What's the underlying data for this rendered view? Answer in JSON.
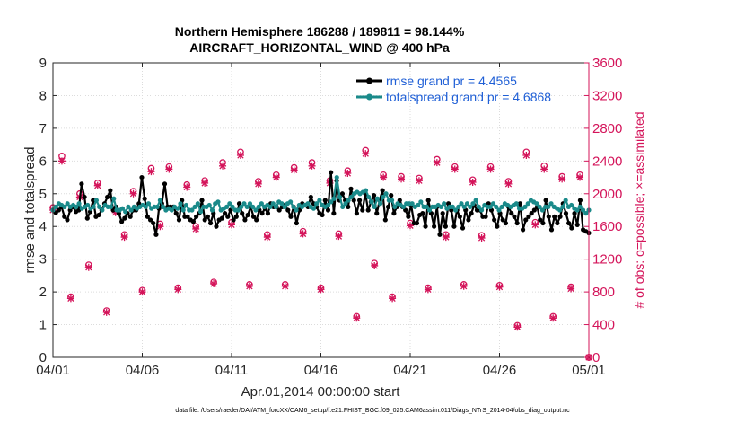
{
  "chart_data": {
    "type": "line",
    "title_line1": "Northern Hemisphere 186288 / 189811 = 98.144%",
    "title_line2": "AIRCRAFT_HORIZONTAL_WIND @ 400 hPa",
    "xlabel": "Apr.01,2014 00:00:00 start",
    "ylabel_left": "rmse and totalspread",
    "ylabel_right": "# of obs: o=possible; ×=assimilated",
    "footnote": "data file: /Users/raeder/DAI/ATM_forcXX/CAM6_setup/f.e21.FHIST_BGC.f09_025.CAM6assim.011/Diags_NTrS_2014-04/obs_diag_output.nc",
    "x_range_days": [
      0,
      30
    ],
    "x_ticks": [
      0,
      5,
      10,
      15,
      20,
      25,
      30
    ],
    "x_tick_labels": [
      "04/01",
      "04/06",
      "04/11",
      "04/16",
      "04/21",
      "04/26",
      "05/01"
    ],
    "ylim_left": [
      0,
      9
    ],
    "y_ticks_left": [
      "0",
      "1",
      "2",
      "3",
      "4",
      "5",
      "6",
      "7",
      "8",
      "9"
    ],
    "ylim_right": [
      0,
      3600
    ],
    "y_ticks_right": [
      "0",
      "400",
      "800",
      "1200",
      "1600",
      "2000",
      "2400",
      "2800",
      "3200",
      "3600"
    ],
    "colors": {
      "rmse": "#000000",
      "spread": "#1a8a8a",
      "obs": "#d4145a",
      "legend_text": "#1f5fd6"
    },
    "series": [
      {
        "name": "rmse grand pr = 4.4565",
        "color": "#000000",
        "values": [
          4.5,
          4.42,
          4.5,
          4.6,
          4.3,
          4.2,
          4.5,
          4.6,
          4.45,
          4.5,
          5.3,
          4.9,
          4.25,
          4.45,
          4.8,
          4.3,
          4.35,
          4.5,
          4.7,
          4.9,
          5.1,
          4.5,
          4.6,
          4.4,
          4.15,
          4.25,
          4.4,
          4.3,
          4.5,
          4.5,
          4.7,
          5.5,
          4.85,
          4.3,
          4.2,
          4.1,
          3.75,
          4.55,
          4.7,
          5.3,
          4.6,
          4.6,
          4.6,
          4.4,
          4.2,
          4.8,
          4.3,
          4.3,
          4.2,
          4.15,
          4.3,
          4.4,
          4.8,
          4.2,
          4.3,
          4.1,
          4.4,
          4.0,
          4.2,
          4.25,
          4.4,
          4.3,
          4.5,
          4.2,
          4.3,
          4.7,
          4.4,
          4.2,
          4.35,
          4.6,
          4.3,
          4.2,
          4.5,
          4.4,
          4.55,
          4.4,
          4.7,
          4.6,
          4.6,
          4.5,
          4.6,
          4.65,
          4.5,
          4.3,
          4.6,
          4.1,
          4.5,
          4.7,
          4.65,
          4.6,
          4.9,
          4.7,
          4.6,
          4.4,
          4.35,
          4.8,
          4.5,
          5.65,
          4.4,
          5.4,
          4.8,
          5.0,
          4.8,
          4.6,
          5.15,
          4.8,
          4.4,
          4.8,
          4.5,
          5.0,
          4.5,
          4.75,
          4.95,
          4.4,
          4.8,
          5.1,
          4.2,
          4.6,
          4.95,
          4.4,
          4.6,
          4.8,
          4.6,
          4.5,
          4.3,
          4.65,
          4.1,
          4.1,
          4.35,
          4.4,
          4.0,
          4.8,
          4.4,
          4.0,
          4.6,
          3.75,
          4.4,
          4.0,
          4.7,
          4.5,
          4.0,
          4.5,
          4.3,
          3.95,
          4.5,
          4.2,
          4.4,
          4.65,
          4.5,
          4.5,
          4.3,
          4.3,
          4.7,
          4.5,
          4.2,
          4.0,
          4.4,
          4.2,
          4.1,
          4.6,
          4.4,
          4.3,
          4.1,
          4.7,
          3.9,
          4.2,
          4.3,
          4.4,
          4.5,
          4.6,
          4.2,
          4.1,
          4.8,
          4.3,
          3.9,
          4.3,
          4.1,
          4.3,
          4.7,
          4.4,
          4.1,
          3.95,
          4.4,
          4.05,
          4.8,
          3.9,
          3.85,
          3.8
        ]
      },
      {
        "name": "totalspread grand pr = 4.6868",
        "color": "#1a8a8a",
        "values": [
          4.5,
          4.6,
          4.7,
          4.65,
          4.6,
          4.7,
          4.6,
          4.65,
          4.6,
          4.7,
          4.55,
          4.6,
          4.65,
          4.55,
          4.6,
          4.8,
          4.6,
          4.5,
          4.65,
          4.6,
          4.6,
          4.85,
          4.5,
          4.5,
          4.55,
          4.45,
          4.6,
          4.5,
          4.6,
          4.55,
          4.6,
          4.65,
          4.6,
          4.7,
          4.55,
          4.6,
          4.6,
          4.8,
          4.6,
          4.5,
          4.55,
          4.5,
          4.6,
          4.55,
          4.7,
          4.5,
          4.65,
          4.5,
          4.5,
          4.6,
          4.7,
          4.45,
          4.6,
          4.6,
          4.65,
          4.5,
          4.7,
          4.75,
          4.5,
          4.55,
          4.6,
          4.7,
          4.6,
          4.5,
          4.5,
          4.6,
          4.7,
          4.6,
          4.7,
          4.6,
          4.5,
          4.6,
          4.7,
          4.6,
          4.65,
          4.6,
          4.7,
          4.6,
          4.75,
          4.7,
          4.6,
          4.7,
          4.75,
          4.6,
          4.5,
          4.65,
          4.6,
          4.65,
          4.7,
          4.6,
          4.55,
          4.7,
          4.8,
          4.65,
          4.6,
          4.65,
          4.75,
          4.85,
          5.5,
          4.9,
          4.6,
          4.7,
          4.8,
          4.9,
          5.0,
          5.05,
          5.0,
          5.05,
          5.1,
          4.9,
          4.75,
          4.6,
          4.85,
          4.7,
          4.9,
          5.0,
          4.8,
          4.8,
          4.6,
          4.7,
          4.65,
          4.6,
          4.7,
          4.7,
          4.7,
          4.6,
          4.65,
          4.75,
          4.6,
          4.6,
          4.5,
          4.6,
          4.6,
          4.65,
          4.6,
          4.7,
          4.55,
          4.6,
          4.6,
          4.5,
          4.6,
          4.7,
          4.6,
          4.7,
          4.6,
          4.7,
          4.8,
          4.6,
          4.5,
          4.65,
          4.6,
          4.6,
          4.7,
          4.6,
          4.5,
          4.6,
          4.7,
          4.65,
          4.6,
          4.65,
          4.7,
          4.55,
          4.55,
          4.6,
          4.7,
          4.8,
          4.75,
          4.7,
          4.6,
          4.5,
          4.6,
          4.6,
          4.7,
          4.6,
          4.55,
          4.5,
          4.6,
          4.8,
          4.6,
          4.65,
          4.55,
          4.5,
          4.6,
          4.5,
          4.4,
          4.5
        ]
      }
    ],
    "obs_possible_x_days": [
      0.0,
      0.5,
      1.0,
      1.5,
      2.0,
      2.5,
      3.0,
      3.5,
      4.0,
      4.5,
      5.0,
      5.5,
      6.0,
      6.5,
      7.0,
      7.5,
      8.0,
      8.5,
      9.0,
      9.5,
      10.0,
      10.5,
      11.0,
      11.5,
      12.0,
      12.5,
      13.0,
      13.5,
      14.0,
      14.5,
      15.0,
      15.5,
      16.0,
      16.5,
      17.0,
      17.5,
      18.0,
      18.5,
      19.0,
      19.5,
      20.0,
      20.5,
      21.0,
      21.5,
      22.0,
      22.5,
      23.0,
      23.5,
      24.0,
      24.5,
      25.0,
      25.5,
      26.0,
      26.5,
      27.0,
      27.5,
      28.0,
      28.5,
      29.0,
      29.5,
      30.0
    ],
    "obs_possible_values": [
      1830,
      2460,
      740,
      2000,
      1130,
      2130,
      570,
      1800,
      1500,
      2030,
      820,
      2310,
      1630,
      2330,
      850,
      2110,
      1600,
      2160,
      920,
      2380,
      1650,
      2510,
      890,
      2150,
      1500,
      2230,
      890,
      2320,
      1540,
      2380,
      850,
      2160,
      1510,
      2280,
      500,
      2530,
      1150,
      2230,
      740,
      2210,
      1640,
      2190,
      850,
      2420,
      1500,
      2330,
      890,
      2170,
      1490,
      2330,
      880,
      2150,
      390,
      2510,
      1650,
      2340,
      500,
      2210,
      860,
      2230,
      0
    ],
    "obs_assimilated_values": [
      1800,
      2400,
      720,
      1960,
      1100,
      2100,
      550,
      1770,
      1470,
      2000,
      800,
      2270,
      1600,
      2300,
      830,
      2080,
      1570,
      2130,
      900,
      2340,
      1620,
      2470,
      870,
      2120,
      1470,
      2200,
      870,
      2290,
      1510,
      2340,
      830,
      2130,
      1480,
      2250,
      480,
      2490,
      1120,
      2200,
      720,
      2180,
      1610,
      2160,
      830,
      2380,
      1470,
      2300,
      870,
      2140,
      1460,
      2300,
      860,
      2120,
      370,
      2470,
      1620,
      2300,
      480,
      2180,
      840,
      2200,
      0
    ]
  }
}
